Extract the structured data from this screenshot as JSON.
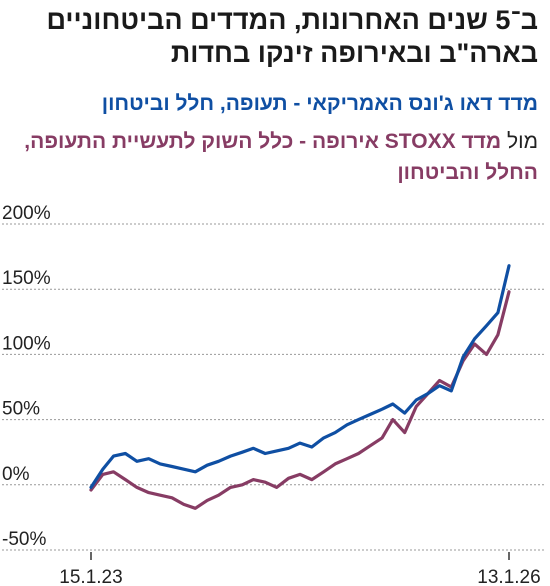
{
  "chart_data": {
    "type": "line",
    "title_lines": [
      "ב־5 שנים האחרונות, המדדים הביטחוניים",
      "בארה\"ב ובאירופה זינקו בחדות"
    ],
    "legend": {
      "series1_label": "מדד דאו ג'ונס האמריקאי - תעופה, חלל וביטחון",
      "series2_prefix": "מול",
      "series2_label": "מדד STOXX אירופה - כלל השוק לתעשיית התעופה, החלל והביטחון"
    },
    "x_tick_labels": [
      "15.1.23",
      "13.1.26"
    ],
    "x_range": [
      "2023-01-15",
      "2026-01-13"
    ],
    "y_ticks": [
      -50,
      0,
      50,
      100,
      150,
      200
    ],
    "y_tick_labels": [
      "-50%",
      "0%",
      "50%",
      "100%",
      "150%",
      "200%"
    ],
    "ylim": [
      -50,
      200
    ],
    "grid": "horizontal-dashed",
    "colors": {
      "series1": "#0f4fa3",
      "series2": "#873c64",
      "grid": "#999999"
    },
    "series": [
      {
        "color_key": "series1",
        "x": [
          "2023-01-15",
          "2023-02-15",
          "2023-03-15",
          "2023-04-15",
          "2023-05-15",
          "2023-06-15",
          "2023-07-15",
          "2023-08-15",
          "2023-09-15",
          "2023-10-15",
          "2023-11-15",
          "2023-12-15",
          "2024-01-15",
          "2024-02-15",
          "2024-03-15",
          "2024-04-15",
          "2024-05-15",
          "2024-06-15",
          "2024-07-15",
          "2024-08-15",
          "2024-09-15",
          "2024-10-15",
          "2024-11-15",
          "2024-12-15",
          "2025-01-15",
          "2025-02-15",
          "2025-03-15",
          "2025-04-15",
          "2025-05-15",
          "2025-06-15",
          "2025-07-15",
          "2025-08-15",
          "2025-09-15",
          "2025-10-15",
          "2025-11-15",
          "2025-12-15",
          "2026-01-13"
        ],
        "y": [
          -2,
          12,
          22,
          24,
          18,
          20,
          16,
          14,
          12,
          10,
          15,
          18,
          22,
          25,
          28,
          24,
          26,
          28,
          32,
          29,
          36,
          40,
          46,
          50,
          54,
          58,
          62,
          55,
          65,
          70,
          76,
          72,
          98,
          112,
          122,
          132,
          168
        ]
      },
      {
        "color_key": "series2",
        "x": [
          "2023-01-15",
          "2023-02-15",
          "2023-03-15",
          "2023-04-15",
          "2023-05-15",
          "2023-06-15",
          "2023-07-15",
          "2023-08-15",
          "2023-09-15",
          "2023-10-15",
          "2023-11-15",
          "2023-12-15",
          "2024-01-15",
          "2024-02-15",
          "2024-03-15",
          "2024-04-15",
          "2024-05-15",
          "2024-06-15",
          "2024-07-15",
          "2024-08-15",
          "2024-09-15",
          "2024-10-15",
          "2024-11-15",
          "2024-12-15",
          "2025-01-15",
          "2025-02-15",
          "2025-03-15",
          "2025-04-15",
          "2025-05-15",
          "2025-06-15",
          "2025-07-15",
          "2025-08-15",
          "2025-09-15",
          "2025-10-15",
          "2025-11-15",
          "2025-12-15",
          "2026-01-13"
        ],
        "y": [
          -4,
          8,
          10,
          4,
          -2,
          -6,
          -8,
          -10,
          -15,
          -18,
          -12,
          -8,
          -2,
          0,
          4,
          2,
          -2,
          5,
          8,
          4,
          10,
          16,
          20,
          24,
          30,
          36,
          50,
          40,
          60,
          70,
          80,
          75,
          95,
          108,
          100,
          115,
          148
        ]
      }
    ]
  }
}
